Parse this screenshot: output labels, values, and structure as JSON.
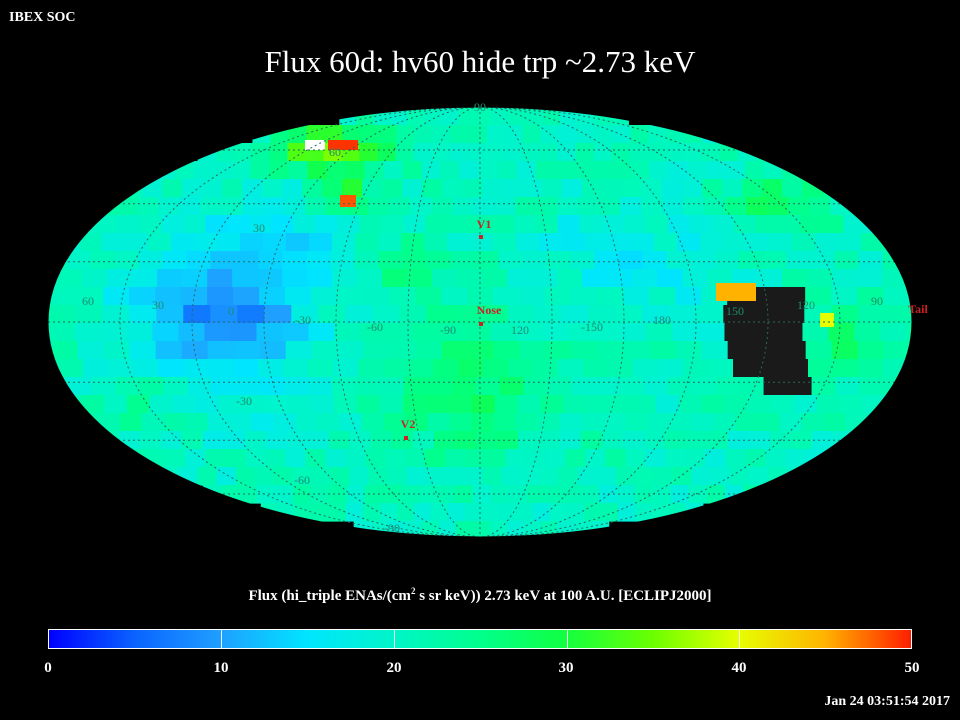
{
  "header": {
    "org": "IBEX SOC",
    "title": "Flux   60d: hv60 hide trp ~2.73 keV"
  },
  "map": {
    "projection": "Mollweide (ecliptic J2000)",
    "colormap": "blue-cyan-green-yellow-red",
    "longitude_labels": [
      "60",
      "30",
      "0",
      "-30",
      "-60",
      "-90",
      "120",
      "-150",
      "180",
      "150",
      "120",
      "90"
    ],
    "latitude_labels": [
      "90",
      "60",
      "30",
      "-30",
      "-60",
      "-90"
    ],
    "markers": [
      {
        "label": "V1"
      },
      {
        "label": "Nose"
      },
      {
        "label": "V2"
      },
      {
        "label": "Tail"
      }
    ],
    "colors": {
      "marker": "#cc2222",
      "grid_label": "#1e8c6e",
      "hidden_region": "#1a1a1a"
    }
  },
  "colorbar": {
    "title": "Flux (hi_triple ENAs/(cm² s sr keV))  2.73 keV at 100 A.U. [ECLIPJ2000]",
    "title_pre": "Flux (hi_triple ENAs/(cm",
    "title_sup": "2",
    "title_post": " s sr keV))  2.73 keV at 100 A.U. [ECLIPJ2000]",
    "min": 0,
    "max": 50,
    "labels": [
      "0",
      "10",
      "20",
      "30",
      "40",
      "50"
    ]
  },
  "footer": {
    "timestamp": "Jan 24 03:51:54 2017"
  }
}
